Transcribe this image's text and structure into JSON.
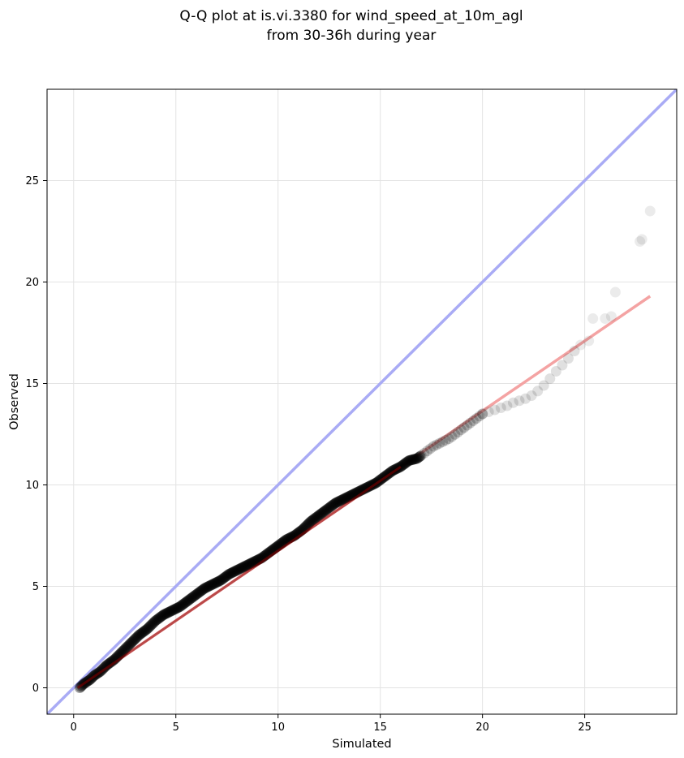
{
  "chart_data": {
    "type": "scatter",
    "title_line1": "Q-Q plot at is.vi.3380 for wind_speed_at_10m_agl",
    "title_line2": "from 30-36h during year",
    "xlabel": "Simulated",
    "ylabel": "Observed",
    "xlim": [
      -1.3,
      29.5
    ],
    "ylim": [
      -1.3,
      29.5
    ],
    "xticks": [
      0,
      5,
      10,
      15,
      20,
      25
    ],
    "yticks": [
      0,
      5,
      10,
      15,
      20,
      25
    ],
    "grid": true,
    "colors": {
      "points": "#000000",
      "identity_line": "#a9abf5",
      "fit_line": "#f4a3a3",
      "fit_line_dense": "#8b0000"
    },
    "identity_line": {
      "slope": 1,
      "intercept": 0
    },
    "fit_line": {
      "x": [
        0.2,
        28.2
      ],
      "y": [
        0.0,
        19.3
      ]
    },
    "qq_points": {
      "x": [
        0.3,
        0.5,
        0.8,
        1.0,
        1.3,
        1.6,
        2.0,
        2.4,
        2.8,
        3.2,
        3.6,
        4.0,
        4.4,
        4.8,
        5.2,
        5.6,
        6.0,
        6.4,
        6.8,
        7.2,
        7.6,
        8.0,
        8.4,
        8.8,
        9.2,
        9.6,
        10.0,
        10.4,
        10.8,
        11.2,
        11.6,
        12.0,
        12.4,
        12.8,
        13.2,
        13.6,
        14.0,
        14.4,
        14.8,
        15.2,
        15.6,
        16.0,
        16.4,
        16.8,
        17.2,
        17.6,
        18.0,
        18.4,
        18.8,
        19.2,
        19.6,
        20.0,
        20.3,
        20.6,
        20.9,
        21.2,
        21.6,
        22.0,
        22.4,
        22.8,
        23.2,
        23.5,
        23.8,
        24.1,
        24.4,
        24.8,
        25.2,
        25.4,
        26.0,
        26.3,
        26.5,
        27.7,
        27.8,
        28.2
      ],
      "y": [
        0.0,
        0.2,
        0.4,
        0.6,
        0.8,
        1.1,
        1.4,
        1.8,
        2.2,
        2.6,
        2.9,
        3.3,
        3.6,
        3.8,
        4.0,
        4.3,
        4.6,
        4.9,
        5.1,
        5.3,
        5.6,
        5.8,
        6.0,
        6.2,
        6.4,
        6.7,
        7.0,
        7.3,
        7.5,
        7.8,
        8.2,
        8.5,
        8.8,
        9.1,
        9.3,
        9.5,
        9.7,
        9.9,
        10.1,
        10.4,
        10.7,
        10.9,
        11.2,
        11.3,
        11.6,
        11.9,
        12.1,
        12.3,
        12.6,
        12.9,
        13.2,
        13.5,
        13.6,
        13.7,
        13.8,
        13.9,
        14.1,
        14.2,
        14.4,
        14.7,
        15.1,
        15.5,
        15.8,
        16.1,
        16.5,
        16.9,
        17.1,
        18.2,
        18.2,
        18.3,
        19.5,
        22.0,
        22.1,
        23.5
      ]
    }
  }
}
